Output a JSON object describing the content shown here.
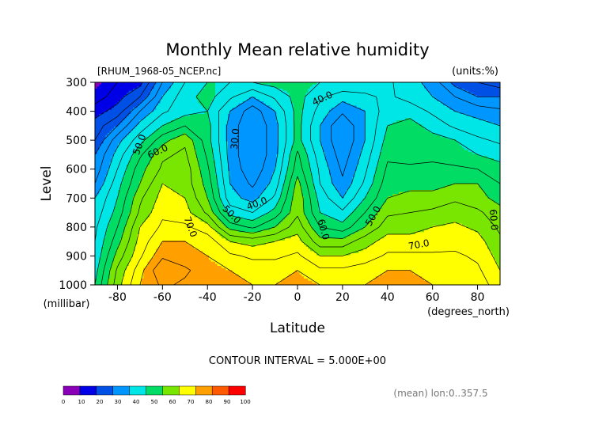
{
  "chart_data": {
    "type": "heatmap",
    "subtype": "filled-contour",
    "title": "Monthly Mean relative humidity",
    "dataset_label": "[RHUM_1968-05_NCEP.nc]",
    "units_label": "(units:%)",
    "xlabel": "Latitude",
    "ylabel": "Level",
    "x_units": "(degrees_north)",
    "y_units": "(millibar)",
    "x_ticks": [
      -80,
      -60,
      -40,
      -20,
      0,
      20,
      40,
      60,
      80
    ],
    "y_ticks": [
      300,
      400,
      500,
      600,
      700,
      800,
      900,
      1000
    ],
    "xlim": [
      -90,
      90
    ],
    "ylim": [
      1000,
      300
    ],
    "contour_interval_text": "CONTOUR INTERVAL = 5.000E+00",
    "footer_text": "(mean) lon:0..357.5",
    "contour_labels": [
      "50.0",
      "60.0",
      "70.0",
      "30.0",
      "40.0",
      "50.0",
      "40.0",
      "60.0",
      "50.0",
      "70.0",
      "60.0"
    ],
    "x_grid": [
      -90,
      -80,
      -70,
      -60,
      -50,
      -40,
      -30,
      -20,
      -10,
      0,
      10,
      20,
      30,
      40,
      50,
      60,
      70,
      80,
      90
    ],
    "y_grid": [
      300,
      350,
      400,
      450,
      500,
      550,
      600,
      650,
      700,
      750,
      800,
      850,
      900,
      950,
      1000
    ],
    "z": [
      [
        8,
        15,
        18,
        35,
        45,
        50,
        50,
        50,
        52,
        52,
        50,
        50,
        48,
        46,
        42,
        38,
        28,
        25,
        22
      ],
      [
        12,
        18,
        25,
        40,
        48,
        52,
        46,
        40,
        46,
        52,
        46,
        42,
        44,
        46,
        43,
        40,
        35,
        30,
        30
      ],
      [
        18,
        22,
        35,
        44,
        48,
        50,
        40,
        32,
        40,
        52,
        43,
        36,
        40,
        48,
        48,
        44,
        40,
        38,
        36
      ],
      [
        22,
        30,
        42,
        50,
        55,
        52,
        38,
        30,
        38,
        52,
        40,
        30,
        40,
        50,
        52,
        48,
        44,
        42,
        40
      ],
      [
        25,
        38,
        48,
        58,
        64,
        52,
        38,
        30,
        38,
        52,
        40,
        30,
        40,
        52,
        52,
        52,
        50,
        46,
        44
      ],
      [
        30,
        42,
        54,
        64,
        66,
        54,
        38,
        30,
        38,
        56,
        42,
        32,
        42,
        54,
        53,
        54,
        52,
        50,
        48
      ],
      [
        32,
        45,
        58,
        66,
        68,
        56,
        39,
        31,
        40,
        58,
        44,
        34,
        44,
        56,
        56,
        56,
        56,
        55,
        52
      ],
      [
        35,
        48,
        60,
        70,
        68,
        58,
        40,
        34,
        42,
        62,
        45,
        36,
        46,
        58,
        58,
        58,
        60,
        60,
        55
      ],
      [
        40,
        50,
        64,
        72,
        70,
        60,
        42,
        38,
        46,
        64,
        48,
        40,
        50,
        60,
        62,
        62,
        64,
        62,
        58
      ],
      [
        42,
        52,
        66,
        74,
        72,
        64,
        48,
        45,
        52,
        64,
        50,
        46,
        55,
        64,
        65,
        66,
        68,
        66,
        62
      ],
      [
        44,
        55,
        70,
        76,
        76,
        72,
        58,
        54,
        60,
        68,
        55,
        52,
        60,
        68,
        68,
        70,
        71,
        69,
        64
      ],
      [
        45,
        58,
        72,
        80,
        80,
        78,
        70,
        68,
        70,
        72,
        62,
        62,
        68,
        72,
        72,
        72,
        73,
        72,
        66
      ],
      [
        46,
        62,
        74,
        84,
        82,
        80,
        76,
        74,
        74,
        76,
        70,
        70,
        72,
        76,
        76,
        76,
        76,
        74,
        68
      ],
      [
        48,
        66,
        78,
        90,
        86,
        82,
        80,
        78,
        78,
        80,
        76,
        76,
        78,
        80,
        80,
        78,
        78,
        76,
        70
      ],
      [
        50,
        68,
        80,
        86,
        84,
        82,
        82,
        80,
        80,
        82,
        80,
        80,
        80,
        82,
        82,
        80,
        80,
        78,
        72
      ]
    ],
    "colorbar": {
      "levels": [
        0,
        10,
        20,
        30,
        40,
        50,
        60,
        70,
        80,
        90,
        100
      ],
      "colors": [
        "#8a00b8",
        "#0000e6",
        "#0050e6",
        "#0096ff",
        "#00e6e6",
        "#00dc64",
        "#78e600",
        "#ffff00",
        "#ffa000",
        "#ff5a00",
        "#ff0000"
      ]
    },
    "line_color": "#000000"
  }
}
